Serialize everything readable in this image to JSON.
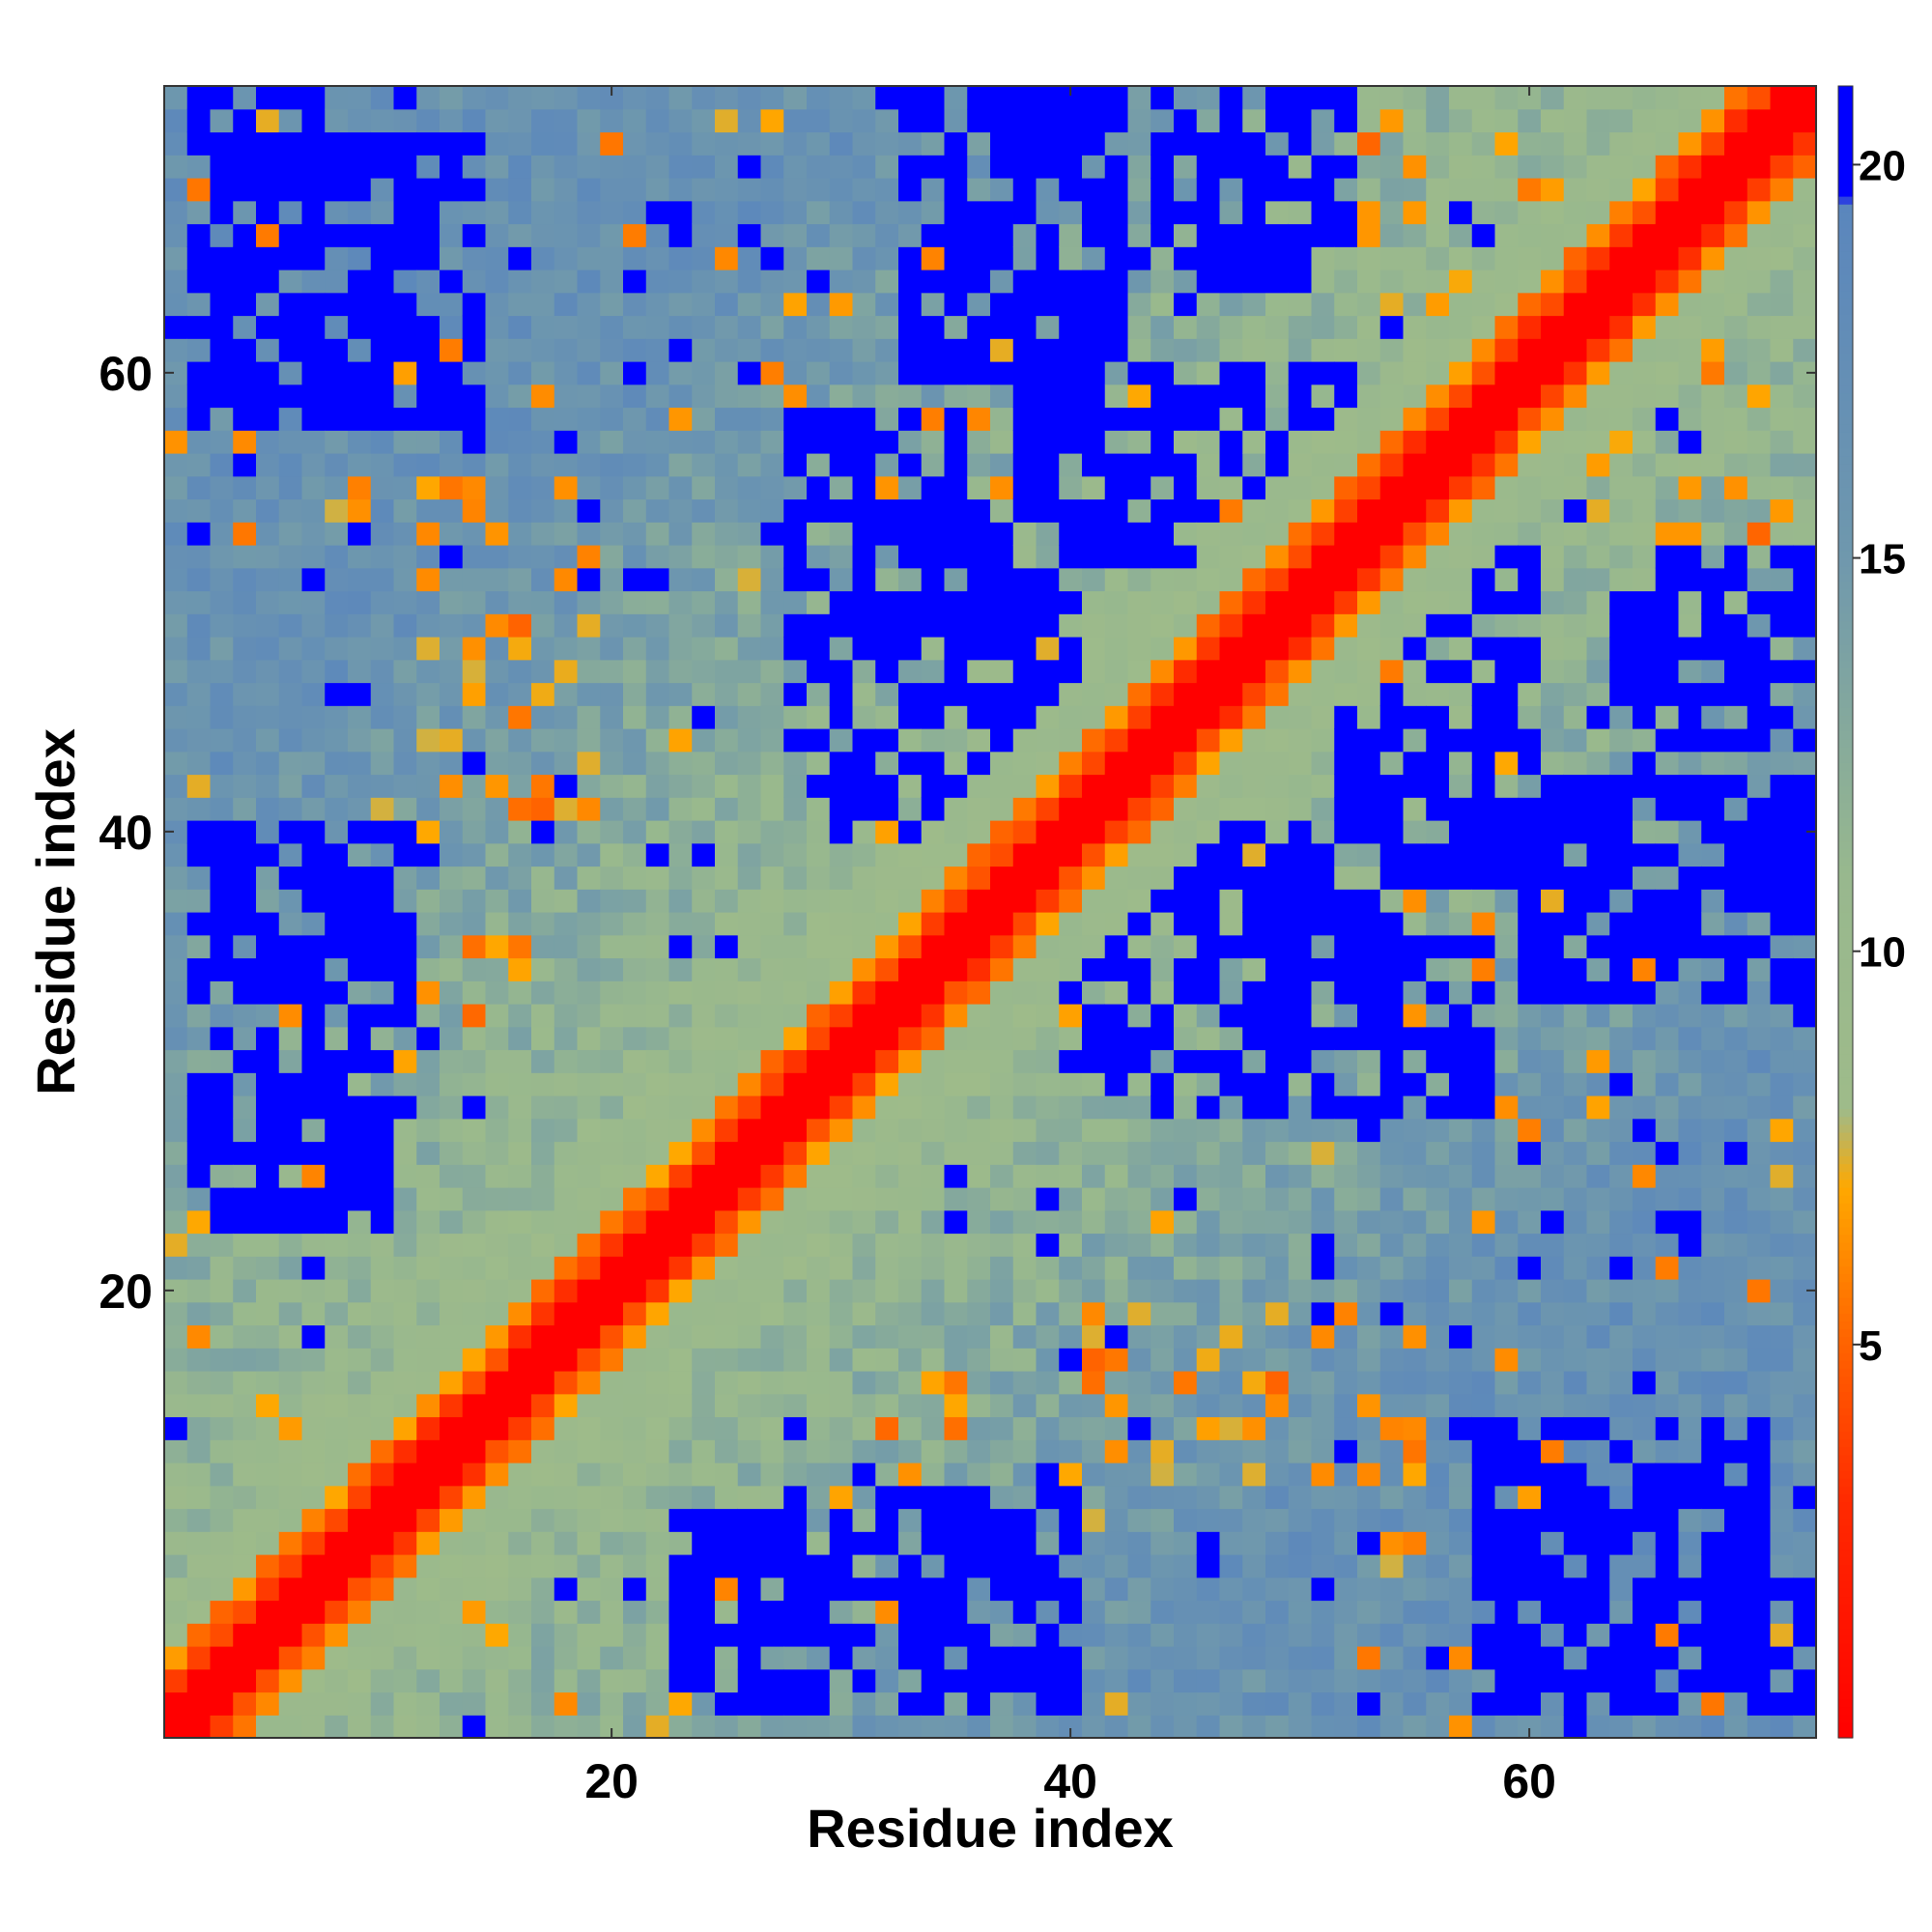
{
  "chart_data": {
    "type": "heatmap",
    "title": "",
    "xlabel": "Residue index",
    "ylabel": "Residue index",
    "n_residues": 72,
    "xlim": [
      0.5,
      72.5
    ],
    "ylim": [
      0.5,
      72.5
    ],
    "x_ticks": [
      20,
      40,
      60
    ],
    "y_ticks": [
      20,
      40,
      60
    ],
    "x_tick_labels": [
      "20",
      "40",
      "60"
    ],
    "y_tick_labels": [
      "20",
      "40",
      "60"
    ],
    "matrix": "symmetric residue-residue distance map; cell values are distances",
    "value_range": [
      0,
      21
    ],
    "colorbar": {
      "position": "right",
      "range": [
        0,
        21
      ],
      "ticks": [
        5,
        10,
        15,
        20
      ],
      "tick_labels": [
        "5",
        "10",
        "15",
        "20"
      ],
      "color_stops": [
        {
          "value": 0,
          "color": "#ff0000"
        },
        {
          "value": 3,
          "color": "#ff2a00"
        },
        {
          "value": 5,
          "color": "#ff6200"
        },
        {
          "value": 7,
          "color": "#ffa800"
        },
        {
          "value": 8,
          "color": "#9ebb8a"
        },
        {
          "value": 11,
          "color": "#98b88e"
        },
        {
          "value": 15,
          "color": "#6f98ad"
        },
        {
          "value": 19.5,
          "color": "#5a86bd"
        },
        {
          "value": 19.6,
          "color": "#0000ff"
        },
        {
          "value": 21,
          "color": "#0000ff"
        }
      ]
    },
    "regions": [
      {
        "i": [
          1,
          72
        ],
        "j": [
          1,
          72
        ],
        "value": "0 on the diagonal |i-j| <= 1"
      },
      {
        "i": [
          1,
          72
        ],
        "j": [
          1,
          72
        ],
        "value": "3-7 for |i-j| = 2-3"
      },
      {
        "i": [
          2,
          11
        ],
        "j": [
          28,
          40
        ],
        "value": ">= 20 (blue cluster)"
      },
      {
        "i": [
          23,
          38
        ],
        "j": [
          2,
          10
        ],
        "value": ">= 20 (blue cluster)"
      },
      {
        "i": [
          29,
          40
        ],
        "j": [
          40,
          54
        ],
        "value": ">= 20 (blue cluster)"
      },
      {
        "i": [
          33,
          42
        ],
        "j": [
          60,
          72
        ],
        "value": ">= 20 (blue cluster)"
      },
      {
        "i": [
          43,
          58
        ],
        "j": [
          28,
          35
        ],
        "value": ">= 20 (blue cluster)"
      },
      {
        "i": [
          44,
          52
        ],
        "j": [
          66,
          72
        ],
        "value": ">= 20 (blue cluster)"
      },
      {
        "i": [
          52,
          60
        ],
        "j": [
          38,
          52
        ],
        "value": ">= 20 (blue cluster)"
      },
      {
        "i": [
          58,
          70
        ],
        "j": [
          2,
          14
        ],
        "value": ">= 20 (blue cluster)"
      },
      {
        "i": [
          64,
          72
        ],
        "j": [
          45,
          50
        ],
        "value": ">= 20 (blue cluster)"
      },
      {
        "i": [
          2,
          7
        ],
        "j": [
          59,
          72
        ],
        "value": ">= 20 (blue cluster)"
      },
      {
        "i": [
          30,
          35
        ],
        "j": [
          9,
          17
        ],
        "value": "4-7 (off-diagonal contacts)"
      },
      {
        "i": [
          40,
          55
        ],
        "j": [
          12,
          20
        ],
        "value": "4-7 (off-diagonal contacts)"
      },
      {
        "i": [
          53,
          65
        ],
        "j": [
          60,
          70
        ],
        "value": "4-7 (off-diagonal contacts)"
      }
    ]
  }
}
